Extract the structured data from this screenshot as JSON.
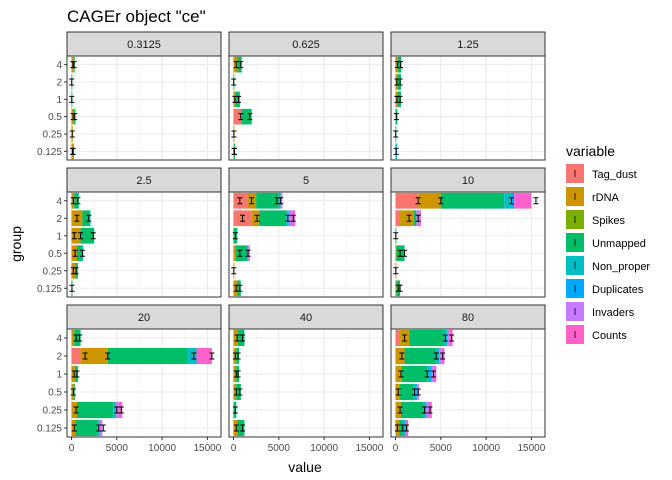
{
  "chart_data": {
    "type": "bar",
    "stacked": true,
    "orientation": "horizontal",
    "title": "CAGEr object \"ce\"",
    "xlabel": "value",
    "ylabel": "group",
    "xlim": [
      -500,
      16500
    ],
    "x_ticks": [
      "0",
      "5000",
      "10000",
      "15000"
    ],
    "x_tick_values": [
      0,
      5000,
      10000,
      15000
    ],
    "groups": [
      "4",
      "2",
      "1",
      "0.5",
      "0.25",
      "0.125"
    ],
    "grid": true,
    "legend": {
      "title": "variable",
      "position": "right",
      "entries": [
        "Tag_dust",
        "rDNA",
        "Spikes",
        "Unmapped",
        "Non_proper",
        "Duplicates",
        "Invaders",
        "Counts"
      ]
    },
    "colors": {
      "Tag_dust": "#F8766D",
      "rDNA": "#CD9600",
      "Spikes": "#7CAE00",
      "Unmapped": "#00BE67",
      "Non_proper": "#00BFC4",
      "Duplicates": "#00A9FF",
      "Invaders": "#C77CFF",
      "Counts": "#FF61CC"
    },
    "panels": [
      {
        "label": "0.3125",
        "bars": [
          {
            "group": "4",
            "segments": {
              "Tag_dust": 50,
              "rDNA": 200,
              "Unmapped": 100
            },
            "error_points": [
              150,
              280
            ]
          },
          {
            "group": "2",
            "segments": {
              "Unmapped": 40
            },
            "error_points": [
              20
            ]
          },
          {
            "group": "1",
            "segments": {
              "Unmapped": 50
            },
            "error_points": [
              25
            ]
          },
          {
            "group": "0.5",
            "segments": {
              "Tag_dust": 30,
              "rDNA": 250,
              "Unmapped": 150
            },
            "error_points": [
              180,
              350
            ]
          },
          {
            "group": "0.25",
            "segments": {
              "Tag_dust": 20,
              "rDNA": 120
            },
            "error_points": [
              80
            ]
          },
          {
            "group": "0.125",
            "segments": {
              "Tag_dust": 20,
              "rDNA": 150,
              "Unmapped": 50
            },
            "error_points": [
              100,
              180
            ]
          }
        ]
      },
      {
        "label": "0.625",
        "bars": [
          {
            "group": "4",
            "segments": {
              "rDNA": 400,
              "Unmapped": 500
            },
            "error_points": [
              300,
              800
            ]
          },
          {
            "group": "2",
            "segments": {
              "Unmapped": 50
            },
            "error_points": [
              20
            ]
          },
          {
            "group": "1",
            "segments": {
              "rDNA": 200,
              "Unmapped": 500
            },
            "error_points": [
              150,
              550
            ]
          },
          {
            "group": "0.5",
            "segments": {
              "Tag_dust": 900,
              "Unmapped": 1100
            },
            "error_points": [
              800,
              1800
            ]
          },
          {
            "group": "0.25",
            "segments": {
              "rDNA": 80
            },
            "error_points": [
              40
            ]
          },
          {
            "group": "0.125",
            "segments": {
              "rDNA": 80,
              "Unmapped": 50
            },
            "error_points": [
              60,
              110
            ]
          }
        ]
      },
      {
        "label": "1.25",
        "bars": [
          {
            "group": "4",
            "segments": {
              "rDNA": 250,
              "Unmapped": 400
            },
            "error_points": [
              200,
              550
            ]
          },
          {
            "group": "2",
            "segments": {
              "rDNA": 200,
              "Unmapped": 400
            },
            "error_points": [
              150,
              500
            ]
          },
          {
            "group": "1",
            "segments": {
              "rDNA": 200,
              "Unmapped": 400
            },
            "error_points": [
              150,
              500
            ]
          },
          {
            "group": "0.5",
            "segments": {
              "Unmapped": 200
            },
            "error_points": [
              100
            ]
          },
          {
            "group": "0.25",
            "segments": {
              "Unmapped": 40
            },
            "error_points": [
              20
            ]
          },
          {
            "group": "0.125",
            "segments": {
              "Unmapped": 80,
              "Non_proper": 60
            },
            "error_points": [
              70
            ]
          }
        ]
      },
      {
        "label": "2.5",
        "bars": [
          {
            "group": "4",
            "segments": {
              "rDNA": 300,
              "Unmapped": 500
            },
            "error_points": [
              200,
              700
            ]
          },
          {
            "group": "2",
            "segments": {
              "rDNA": 1200,
              "Unmapped": 800,
              "Non_proper": 100
            },
            "error_points": [
              600,
              1900
            ]
          },
          {
            "group": "1",
            "segments": {
              "rDNA": 1000,
              "Unmapped": 1500
            },
            "error_points": [
              300,
              1000,
              2400
            ]
          },
          {
            "group": "0.5",
            "segments": {
              "rDNA": 600,
              "Unmapped": 500,
              "Non_proper": 200
            },
            "error_points": [
              400,
              1200
            ]
          },
          {
            "group": "0.25",
            "segments": {
              "rDNA": 400,
              "Unmapped": 300
            },
            "error_points": [
              200,
              500
            ]
          },
          {
            "group": "0.125",
            "segments": {
              "Unmapped": 100
            },
            "error_points": [
              50
            ]
          }
        ]
      },
      {
        "label": "5",
        "bars": [
          {
            "group": "4",
            "segments": {
              "Tag_dust": 1500,
              "rDNA": 1000,
              "Unmapped": 2500,
              "Non_proper": 200,
              "Invaders": 200
            },
            "error_points": [
              700,
              2000,
              4800,
              5200
            ]
          },
          {
            "group": "2",
            "segments": {
              "Tag_dust": 2000,
              "rDNA": 800,
              "Unmapped": 3000,
              "Non_proper": 200,
              "Duplicates": 100,
              "Invaders": 400,
              "Counts": 300
            },
            "error_points": [
              1000,
              2600,
              6000,
              6600
            ]
          },
          {
            "group": "1",
            "segments": {
              "Unmapped": 400
            },
            "error_points": [
              200
            ]
          },
          {
            "group": "0.5",
            "segments": {
              "rDNA": 200,
              "Unmapped": 1300,
              "Non_proper": 100,
              "Invaders": 100,
              "Counts": 100
            },
            "error_points": [
              700,
              1600
            ]
          },
          {
            "group": "0.25",
            "segments": {
              "rDNA": 50
            },
            "error_points": [
              30
            ]
          },
          {
            "group": "0.125",
            "segments": {
              "rDNA": 400,
              "Unmapped": 400
            },
            "error_points": [
              300,
              700
            ]
          }
        ]
      },
      {
        "label": "10",
        "bars": [
          {
            "group": "4",
            "segments": {
              "Tag_dust": 2500,
              "rDNA": 2500,
              "Unmapped": 7000,
              "Non_proper": 800,
              "Duplicates": 300,
              "Counts": 1900
            },
            "error_points": [
              2500,
              5000,
              12800,
              15500
            ]
          },
          {
            "group": "2",
            "segments": {
              "Tag_dust": 500,
              "rDNA": 1500,
              "Unmapped": 300,
              "Invaders": 300,
              "Counts": 200
            },
            "error_points": [
              1500,
              2500
            ]
          },
          {
            "group": "1",
            "segments": {
              "Unmapped": 50
            },
            "error_points": [
              30
            ]
          },
          {
            "group": "0.5",
            "segments": {
              "rDNA": 100,
              "Unmapped": 900
            },
            "error_points": [
              500,
              1000
            ]
          },
          {
            "group": "0.25",
            "segments": {
              "Tag_dust": 50
            },
            "error_points": [
              30
            ]
          },
          {
            "group": "0.125",
            "segments": {
              "rDNA": 100,
              "Unmapped": 400
            },
            "error_points": [
              300,
              500
            ]
          }
        ]
      },
      {
        "label": "20",
        "bars": [
          {
            "group": "4",
            "segments": {
              "rDNA": 300,
              "Unmapped": 700
            },
            "error_points": [
              500,
              900
            ]
          },
          {
            "group": "2",
            "segments": {
              "Tag_dust": 1000,
              "rDNA": 3000,
              "Unmapped": 8800,
              "Non_proper": 1000,
              "Counts": 1700
            },
            "error_points": [
              1500,
              4000,
              13500,
              15500
            ]
          },
          {
            "group": "1",
            "segments": {
              "rDNA": 400,
              "Unmapped": 300
            },
            "error_points": [
              300,
              600
            ]
          },
          {
            "group": "0.5",
            "segments": {
              "rDNA": 300,
              "Unmapped": 100
            },
            "error_points": [
              200
            ]
          },
          {
            "group": "0.25",
            "segments": {
              "rDNA": 600,
              "Unmapped": 4000,
              "Non_proper": 300,
              "Invaders": 300,
              "Counts": 400
            },
            "error_points": [
              500,
              5000,
              5500
            ]
          },
          {
            "group": "0.125",
            "segments": {
              "rDNA": 400,
              "Unmapped": 2500,
              "Non_proper": 200,
              "Invaders": 300
            },
            "error_points": [
              300,
              3000,
              3500
            ]
          }
        ]
      },
      {
        "label": "40",
        "bars": [
          {
            "group": "4",
            "segments": {
              "rDNA": 500,
              "Unmapped": 700
            },
            "error_points": [
              400,
              1000
            ]
          },
          {
            "group": "2",
            "segments": {
              "rDNA": 300,
              "Unmapped": 300
            },
            "error_points": [
              200,
              500
            ]
          },
          {
            "group": "1",
            "segments": {
              "rDNA": 300,
              "Unmapped": 300
            },
            "error_points": [
              300,
              500
            ]
          },
          {
            "group": "0.5",
            "segments": {
              "rDNA": 300,
              "Unmapped": 500
            },
            "error_points": [
              300,
              700
            ]
          },
          {
            "group": "0.25",
            "segments": {
              "Unmapped": 300
            },
            "error_points": [
              200
            ]
          },
          {
            "group": "0.125",
            "segments": {
              "rDNA": 400,
              "Unmapped": 800
            },
            "error_points": [
              300,
              1000
            ]
          }
        ]
      },
      {
        "label": "80",
        "bars": [
          {
            "group": "4",
            "segments": {
              "Tag_dust": 500,
              "rDNA": 1000,
              "Unmapped": 3800,
              "Non_proper": 400,
              "Invaders": 300,
              "Counts": 300
            },
            "error_points": [
              1000,
              5500,
              6200
            ]
          },
          {
            "group": "2",
            "segments": {
              "rDNA": 1000,
              "Unmapped": 3500,
              "Non_proper": 300,
              "Invaders": 300,
              "Counts": 300
            },
            "error_points": [
              700,
              4500,
              5200
            ]
          },
          {
            "group": "1",
            "segments": {
              "rDNA": 700,
              "Unmapped": 2800,
              "Non_proper": 300,
              "Duplicates": 200,
              "Invaders": 300,
              "Counts": 200
            },
            "error_points": [
              600,
              3500,
              4200
            ]
          },
          {
            "group": "0.5",
            "segments": {
              "rDNA": 500,
              "Unmapped": 1500,
              "Non_proper": 300,
              "Duplicates": 100,
              "Invaders": 100,
              "Counts": 100
            },
            "error_points": [
              300,
              2100,
              2500
            ]
          },
          {
            "group": "0.25",
            "segments": {
              "rDNA": 600,
              "Unmapped": 2500,
              "Non_proper": 200,
              "Duplicates": 100,
              "Invaders": 300,
              "Counts": 300
            },
            "error_points": [
              500,
              3200,
              3800
            ]
          },
          {
            "group": "0.125",
            "segments": {
              "rDNA": 400,
              "Unmapped": 400,
              "Non_proper": 200,
              "Duplicates": 100,
              "Invaders": 100,
              "Counts": 200
            },
            "error_points": [
              200,
              800,
              1200
            ]
          }
        ]
      }
    ]
  }
}
